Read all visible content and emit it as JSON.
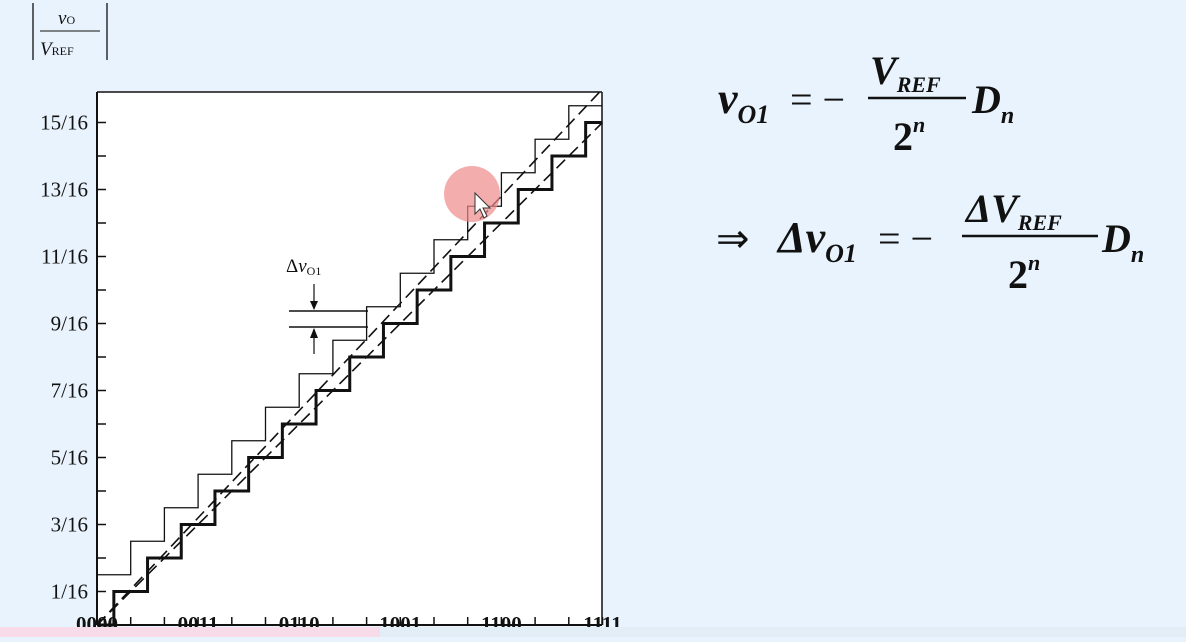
{
  "chart_data": {
    "type": "line",
    "ylabel_num": "v",
    "ylabel_num_sub": "O",
    "ylabel_den": "V",
    "ylabel_den_sub": "REF",
    "y_ticks": [
      "1/16",
      "3/16",
      "5/16",
      "7/16",
      "9/16",
      "11/16",
      "13/16",
      "15/16"
    ],
    "x_ticks": [
      "0000",
      "0011",
      "0110",
      "1001",
      "1100",
      "1111"
    ],
    "xlim": [
      0,
      15
    ],
    "ylim": [
      0,
      16
    ],
    "annotation": {
      "delta": "Δ",
      "var": "v",
      "sub": "O1"
    },
    "series": [
      {
        "style": "thick-staircase",
        "values": [
          0,
          1,
          2,
          3,
          4,
          5,
          6,
          7,
          8,
          9,
          10,
          11,
          12,
          13,
          14,
          15
        ]
      },
      {
        "style": "thin-staircase",
        "values": [
          0.5,
          1.5,
          2.5,
          3.5,
          4.5,
          5.5,
          6.5,
          7.5,
          8.5,
          9.5,
          10.5,
          11.5,
          12.5,
          13.5,
          14.5,
          15.5
        ]
      },
      {
        "style": "dashed-ideal",
        "start": [
          0,
          0
        ],
        "end": [
          15,
          15
        ]
      },
      {
        "style": "dashed-shifted",
        "start": [
          0,
          0
        ],
        "end": [
          15,
          16
        ]
      }
    ]
  },
  "formulas": {
    "f1": {
      "lhs": "v",
      "lhs_sub": "O1",
      "eq": "= −",
      "num": "V",
      "num_sub": "REF",
      "den": "2",
      "den_sup": "n",
      "tail": "D",
      "tail_sub": "n"
    },
    "f2": {
      "arrow": "⇒",
      "lhs": "Δv",
      "lhs_sub": "O1",
      "eq": "= −",
      "num": "ΔV",
      "num_sub": "REF",
      "den": "2",
      "den_sup": "n",
      "tail": "D",
      "tail_sub": "n"
    }
  },
  "colors": {
    "background": "#e9f3fd",
    "plot_bg": "#ffffff",
    "ink": "#111111",
    "cursor_highlight": "#f08a8a"
  }
}
